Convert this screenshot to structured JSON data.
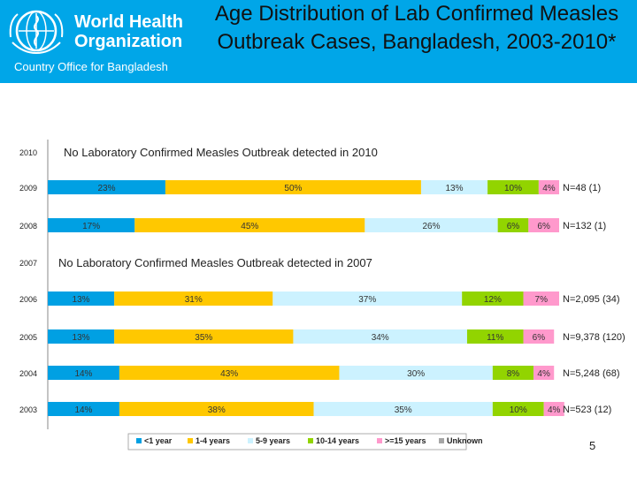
{
  "logo": {
    "name_line1": "World Health",
    "name_line2": "Organization",
    "subtitle": "Country Office for Bangladesh"
  },
  "title": "Age Distribution of Lab Confirmed Measles Outbreak Cases, Bangladesh, 2003-2010*",
  "page_number": "5",
  "colors": {
    "header": "#00a6e8",
    "lt1": "#00a0e3",
    "y1_4": "#ffc800",
    "y5_9": "#ccf2ff",
    "y10_14": "#92d400",
    "y15plus": "#ff99cc",
    "unknown": "#a6a6a6"
  },
  "chart_data": {
    "type": "bar",
    "orientation": "horizontal",
    "stacked": true,
    "categories": [
      "2010",
      "2009",
      "2008",
      "2007",
      "2006",
      "2005",
      "2004",
      "2003"
    ],
    "series": [
      {
        "name": "<1 year",
        "color": "#00a0e3",
        "values": [
          null,
          23,
          17,
          null,
          13,
          13,
          14,
          14
        ]
      },
      {
        "name": "1-4 years",
        "color": "#ffc800",
        "values": [
          null,
          50,
          45,
          null,
          31,
          35,
          43,
          38
        ]
      },
      {
        "name": "5-9 years",
        "color": "#ccf2ff",
        "values": [
          null,
          13,
          26,
          null,
          37,
          34,
          30,
          35
        ]
      },
      {
        "name": "10-14 years",
        "color": "#92d400",
        "values": [
          null,
          10,
          6,
          null,
          12,
          11,
          8,
          10
        ]
      },
      {
        "name": ">=15 years",
        "color": "#ff99cc",
        "values": [
          null,
          4,
          6,
          null,
          7,
          6,
          4,
          4
        ]
      },
      {
        "name": "Unknown",
        "color": "#a6a6a6",
        "values": [
          null,
          0,
          0,
          null,
          0,
          0,
          0,
          0
        ]
      }
    ],
    "data_labels": [
      [],
      [
        "23%",
        "50%",
        "13%",
        "10%",
        "4%",
        ""
      ],
      [
        "17%",
        "45%",
        "26%",
        "6%",
        "6%",
        ""
      ],
      [],
      [
        "13%",
        "31%",
        "37%",
        "12%",
        "7%",
        ""
      ],
      [
        "13%",
        "35%",
        "34%",
        "11%",
        "6%",
        ""
      ],
      [
        "14%",
        "43%",
        "30%",
        "8%",
        "4%",
        ""
      ],
      [
        "14%",
        "38%",
        "35%",
        "10%",
        "4%",
        ""
      ]
    ],
    "n_labels": [
      "",
      "N=48 (1)",
      "N=132 (1)",
      "",
      "N=2,095 (34)",
      "N=9,378 (120)",
      "N=5,248 (68)",
      "N=523 (12)"
    ],
    "notes": [
      {
        "row": 0,
        "text": "No Laboratory Confirmed Measles Outbreak detected in 2010"
      },
      {
        "row": 3,
        "text": "No Laboratory Confirmed Measles Outbreak detected in 2007"
      }
    ],
    "xlim": [
      0,
      100
    ],
    "legend": "bottom",
    "grid": false
  }
}
